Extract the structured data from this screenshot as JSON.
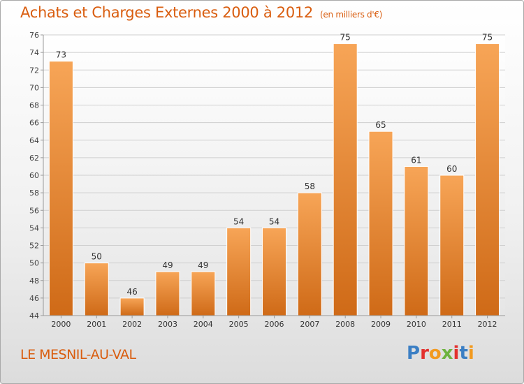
{
  "header": {
    "title": "Achats et Charges Externes 2000 à 2012",
    "unit": "(en milliers d'€)"
  },
  "footer": {
    "place": "LE MESNIL-AU-VAL",
    "logo_text": "Proxiti",
    "logo_colors": [
      "#3b7fc4",
      "#e3312e",
      "#f29a1f",
      "#6db33f",
      "#e3312e",
      "#3b7fc4",
      "#f29a1f"
    ]
  },
  "colors": {
    "bar_top": "#f7a557",
    "bar_bottom": "#cf6a17",
    "title": "#d95d0f",
    "grid": "#cfcfcf"
  },
  "chart_data": {
    "type": "bar",
    "title": "Achats et Charges Externes 2000 à 2012",
    "subtitle": "(en milliers d'€)",
    "categories": [
      "2000",
      "2001",
      "2002",
      "2003",
      "2004",
      "2005",
      "2006",
      "2007",
      "2008",
      "2009",
      "2010",
      "2011",
      "2012"
    ],
    "values": [
      73,
      50,
      46,
      49,
      49,
      54,
      54,
      58,
      75,
      65,
      61,
      60,
      75
    ],
    "ylim": [
      44,
      76
    ],
    "yticks": [
      44,
      46,
      48,
      50,
      52,
      54,
      56,
      58,
      60,
      62,
      64,
      66,
      68,
      70,
      72,
      74,
      76
    ],
    "grid": true,
    "data_labels": true
  }
}
